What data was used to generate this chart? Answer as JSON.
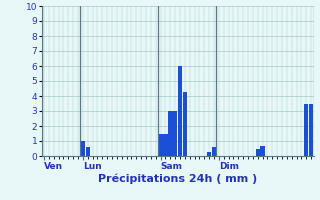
{
  "title": "",
  "xlabel": "Précipitations 24h ( mm )",
  "ylabel": "",
  "background_color": "#e8f8f8",
  "bar_color": "#1a4fd6",
  "grid_color": "#a8c8c8",
  "axis_label_color": "#2233bb",
  "tick_label_color": "#2233bb",
  "ylim": [
    0,
    10
  ],
  "yticks": [
    0,
    1,
    2,
    3,
    4,
    5,
    6,
    7,
    8,
    9,
    10
  ],
  "num_bars": 48,
  "bar_values": [
    0,
    0,
    0,
    0,
    0,
    0,
    0,
    0,
    1.0,
    0.6,
    0,
    0,
    0,
    0,
    0,
    0,
    0,
    0,
    0,
    0,
    0,
    0,
    0,
    0,
    1.5,
    1.5,
    3.0,
    3.0,
    6.0,
    4.3,
    0,
    0,
    0,
    0,
    0.3,
    0.6,
    0,
    0,
    0,
    0,
    0,
    0,
    0,
    0,
    0.5,
    0.7,
    0,
    0
  ],
  "day_label_indices": [
    0,
    8,
    24,
    36
  ],
  "day_labels": [
    "Ven",
    "Lun",
    "Sam",
    "Dim"
  ],
  "xlabel_fontsize": 8,
  "tick_fontsize": 6.5,
  "day_fontsize": 6.5,
  "last_bars": [
    0,
    0,
    0,
    0,
    0,
    0,
    3.5,
    3.5
  ]
}
